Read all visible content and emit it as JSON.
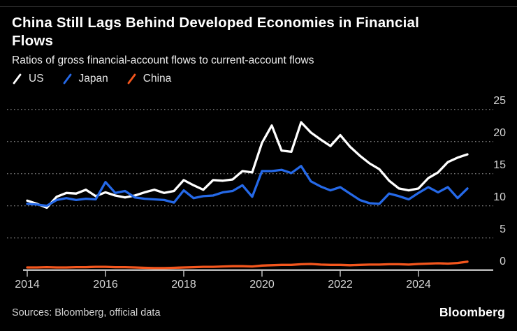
{
  "header": {
    "title": "China Still Lags Behind Developed Economies in Financial Flows",
    "subtitle": "Ratios of gross financial-account flows to current-account flows"
  },
  "legend": [
    {
      "label": "US",
      "color": "#ffffff"
    },
    {
      "label": "Japan",
      "color": "#2569e8"
    },
    {
      "label": "China",
      "color": "#f4561d"
    }
  ],
  "chart_data": {
    "type": "line",
    "title": "China Still Lags Behind Developed Economies in Financial Flows",
    "subtitle": "Ratios of gross financial-account flows to current-account flows",
    "x_unit": "quarterly",
    "x_start": 2014.0,
    "x_step": 0.25,
    "x_ticks": [
      2014,
      2016,
      2018,
      2020,
      2022,
      2024
    ],
    "y_ticks": [
      0,
      5,
      10,
      15,
      20,
      25
    ],
    "ylim": [
      0,
      25
    ],
    "grid": "horizontal-dotted",
    "legend_position": "top-left",
    "series": [
      {
        "name": "US",
        "color": "#ffffff",
        "values": [
          10.8,
          10.3,
          9.7,
          11.4,
          12.0,
          11.9,
          12.5,
          11.5,
          12.1,
          11.6,
          11.3,
          11.6,
          12.1,
          12.5,
          12.0,
          12.3,
          14.0,
          13.2,
          12.5,
          14.0,
          13.9,
          14.1,
          15.4,
          15.2,
          19.8,
          22.5,
          18.6,
          18.4,
          23.0,
          21.4,
          20.3,
          19.3,
          21.0,
          19.2,
          17.8,
          16.6,
          15.7,
          13.9,
          12.7,
          12.4,
          12.7,
          14.3,
          15.2,
          16.8,
          17.5,
          18.0
        ]
      },
      {
        "name": "Japan",
        "color": "#2569e8",
        "values": [
          10.3,
          10.2,
          10.0,
          10.9,
          11.2,
          10.9,
          11.1,
          11.0,
          13.7,
          12.0,
          12.3,
          11.3,
          11.1,
          11.0,
          10.9,
          10.5,
          12.4,
          11.2,
          11.5,
          11.6,
          12.1,
          12.3,
          13.2,
          11.4,
          15.4,
          15.4,
          15.6,
          15.1,
          16.2,
          13.8,
          13.0,
          12.4,
          12.9,
          11.9,
          10.9,
          10.4,
          10.3,
          11.9,
          11.5,
          11.0,
          12.0,
          12.9,
          12.1,
          12.9,
          11.2,
          12.7
        ]
      },
      {
        "name": "China",
        "color": "#f4561d",
        "values": [
          0.4,
          0.4,
          0.45,
          0.4,
          0.4,
          0.45,
          0.45,
          0.5,
          0.5,
          0.45,
          0.45,
          0.4,
          0.35,
          0.3,
          0.3,
          0.35,
          0.4,
          0.45,
          0.5,
          0.5,
          0.55,
          0.6,
          0.6,
          0.55,
          0.7,
          0.75,
          0.8,
          0.8,
          0.9,
          0.95,
          0.85,
          0.8,
          0.8,
          0.75,
          0.8,
          0.85,
          0.85,
          0.9,
          0.9,
          0.85,
          0.95,
          1.0,
          1.05,
          1.0,
          1.1,
          1.3
        ]
      }
    ]
  },
  "footer": {
    "sources": "Sources: Bloomberg, official data",
    "brand": "Bloomberg"
  }
}
